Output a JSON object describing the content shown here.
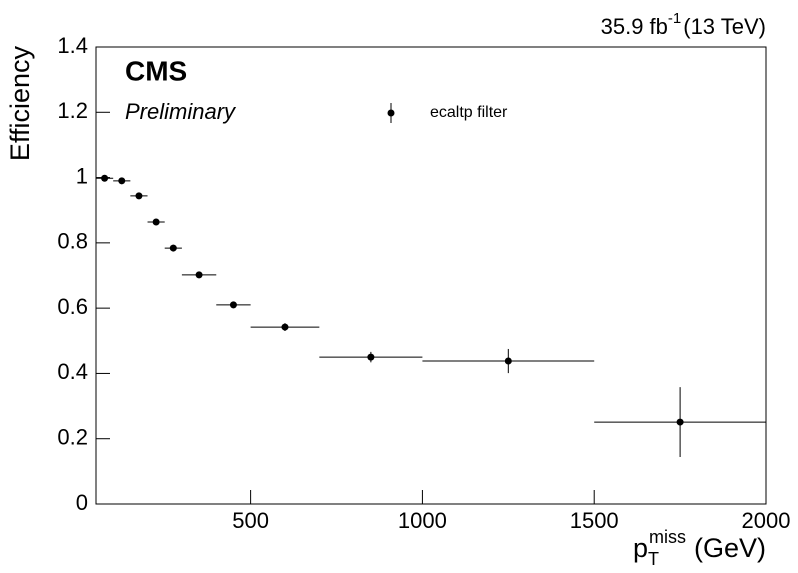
{
  "chart_data": {
    "type": "scatter",
    "experiment": "CMS",
    "status": "Preliminary",
    "lumi": {
      "base": "35.9 fb",
      "sup": "-1",
      "rest": "(13 TeV)"
    },
    "xlabel": {
      "base": "p",
      "sub": "T",
      "sup": "miss",
      "rest": "(GeV)"
    },
    "ylabel": "Efficiency",
    "series": [
      {
        "name": "ecaltp filter",
        "color": "#000000",
        "x": [
          75,
          125,
          175,
          225,
          275,
          350,
          450,
          600,
          850,
          1250,
          1750
        ],
        "xerr": [
          25,
          25,
          25,
          25,
          25,
          50,
          50,
          100,
          150,
          250,
          250
        ],
        "y": [
          0.998,
          0.99,
          0.944,
          0.864,
          0.784,
          0.702,
          0.61,
          0.542,
          0.45,
          0.438,
          0.251
        ],
        "yerr": [
          0.005,
          0.006,
          0.008,
          0.009,
          0.01,
          0.01,
          0.01,
          0.012,
          0.016,
          0.037,
          0.107
        ]
      }
    ],
    "xlim": [
      50,
      2000
    ],
    "xticks": [
      500,
      1000,
      1500,
      2000
    ],
    "ylim": [
      0,
      1.4
    ],
    "yticks": [
      0,
      0.2,
      0.4,
      0.6,
      0.8,
      1,
      1.2,
      1.4
    ],
    "legend": "top-center"
  }
}
